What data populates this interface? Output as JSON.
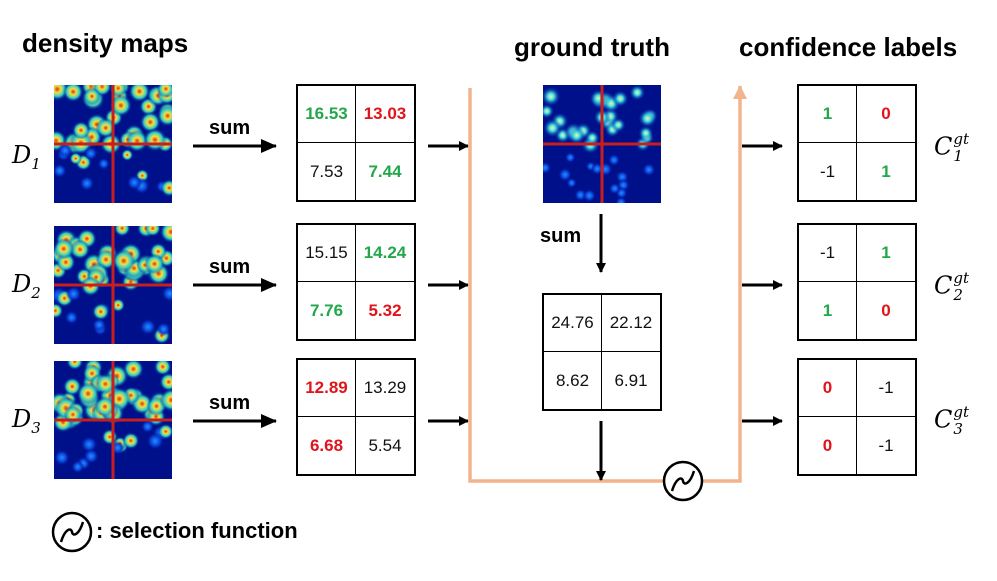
{
  "colors": {
    "green": "#22a74a",
    "red": "#e0141a",
    "black": "#111111",
    "flow": "#f2b48c",
    "heat_low": "#00108a",
    "heat_high": "#f0e040",
    "crosshair": "#c81e1e"
  },
  "headings": {
    "density_maps": "density maps",
    "ground_truth": "ground truth",
    "confidence_labels": "confidence labels"
  },
  "sum_label": "sum",
  "legend": {
    "icon": "selection-function-icon",
    "text": ": selection function"
  },
  "density_rows": [
    {
      "d_label": "D",
      "d_sub": "1",
      "sums": [
        {
          "value": "16.53",
          "color": "green"
        },
        {
          "value": "13.03",
          "color": "red"
        },
        {
          "value": "7.53",
          "color": "black"
        },
        {
          "value": "7.44",
          "color": "green"
        }
      ],
      "labels": [
        {
          "value": "1",
          "color": "green"
        },
        {
          "value": "0",
          "color": "red"
        },
        {
          "value": "-1",
          "color": "black"
        },
        {
          "value": "1",
          "color": "green"
        }
      ],
      "c_label": "C",
      "c_sub": "1",
      "c_sup": "gt"
    },
    {
      "d_label": "D",
      "d_sub": "2",
      "sums": [
        {
          "value": "15.15",
          "color": "black"
        },
        {
          "value": "14.24",
          "color": "green"
        },
        {
          "value": "7.76",
          "color": "green"
        },
        {
          "value": "5.32",
          "color": "red"
        }
      ],
      "labels": [
        {
          "value": "-1",
          "color": "black"
        },
        {
          "value": "1",
          "color": "green"
        },
        {
          "value": "1",
          "color": "green"
        },
        {
          "value": "0",
          "color": "red"
        }
      ],
      "c_label": "C",
      "c_sub": "2",
      "c_sup": "gt"
    },
    {
      "d_label": "D",
      "d_sub": "3",
      "sums": [
        {
          "value": "12.89",
          "color": "red"
        },
        {
          "value": "13.29",
          "color": "black"
        },
        {
          "value": "6.68",
          "color": "red"
        },
        {
          "value": "5.54",
          "color": "black"
        }
      ],
      "labels": [
        {
          "value": "0",
          "color": "red"
        },
        {
          "value": "-1",
          "color": "black"
        },
        {
          "value": "0",
          "color": "red"
        },
        {
          "value": "-1",
          "color": "black"
        }
      ],
      "c_label": "C",
      "c_sub": "3",
      "c_sup": "gt"
    }
  ],
  "ground_truth_sums": [
    {
      "value": "24.76",
      "color": "black"
    },
    {
      "value": "22.12",
      "color": "black"
    },
    {
      "value": "8.62",
      "color": "black"
    },
    {
      "value": "6.91",
      "color": "black"
    }
  ]
}
